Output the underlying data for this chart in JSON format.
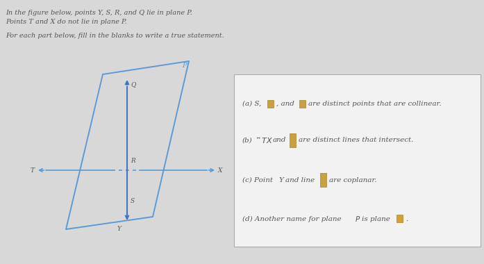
{
  "bg_color": "#d8d8d8",
  "header_text_1": "In the figure below, points Y, S, R, and Q lie in plane P.",
  "header_text_2": "Points T and X do not lie in plane P.",
  "header_text_3": "For each part below, fill in the blanks to write a true statement.",
  "plane_color": "#5b9bd5",
  "axis_color": "#5b9bd5",
  "vertical_line_color": "#4472c4",
  "blank_color_a": "#c8a040",
  "blank_color_b": "#c8a040",
  "blank_color_tall": "#c8a040",
  "blank_color_d": "#d4a030",
  "text_color": "#555555",
  "box_bg": "#f2f2f2",
  "box_edge": "#aaaaaa",
  "plane_label": "P",
  "point_T": "T",
  "point_X": "X",
  "point_Q": "Q",
  "point_R": "R",
  "point_S": "S",
  "point_Y": "Y",
  "part_a_pre": "(a) S,",
  "part_a_mid": ", and",
  "part_a_post": "are distinct points that are collinear.",
  "part_b_pre": "(b)",
  "part_b_post": "are distinct lines that intersect.",
  "part_c_pre": "(c) Point",
  "part_c_mid": "and line",
  "part_c_post": "are coplanar.",
  "part_d_pre": "(d) Another name for plane",
  "part_d_mid": "is plane",
  "figsize": [
    6.97,
    3.8
  ],
  "dpi": 100
}
